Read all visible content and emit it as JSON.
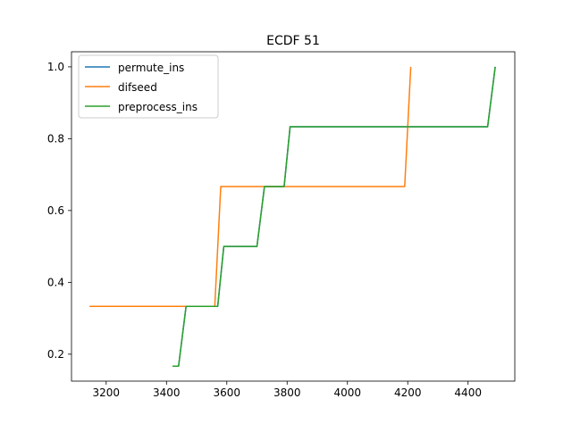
{
  "chart_data": {
    "type": "line",
    "title": "ECDF 51",
    "xlabel": "",
    "ylabel": "",
    "xlim": [
      3085,
      4555
    ],
    "ylim": [
      0.125,
      1.042
    ],
    "xticks": [
      3200,
      3400,
      3600,
      3800,
      4000,
      4200,
      4400
    ],
    "yticks": [
      0.2,
      0.4,
      0.6,
      0.8,
      1.0
    ],
    "ytick_labels": [
      "0.2",
      "0.4",
      "0.6",
      "0.8",
      "1.0"
    ],
    "grid": false,
    "legend_position": "top-left",
    "series": [
      {
        "name": "permute_ins",
        "color": "#1f77b4",
        "x": [
          3420,
          3440,
          3465,
          3570,
          3590,
          3700,
          3725,
          3790,
          3810,
          4465,
          4490
        ],
        "y": [
          0.1667,
          0.1667,
          0.3333,
          0.3333,
          0.5,
          0.5,
          0.6667,
          0.6667,
          0.8333,
          0.8333,
          1.0
        ]
      },
      {
        "name": "difseed",
        "color": "#ff7f0e",
        "x": [
          3145,
          3560,
          3580,
          4190,
          4210
        ],
        "y": [
          0.3333,
          0.3333,
          0.6667,
          0.6667,
          1.0
        ]
      },
      {
        "name": "preprocess_ins",
        "color": "#2ca02c",
        "x": [
          3420,
          3440,
          3465,
          3570,
          3590,
          3700,
          3725,
          3790,
          3810,
          4465,
          4490
        ],
        "y": [
          0.1667,
          0.1667,
          0.3333,
          0.3333,
          0.5,
          0.5,
          0.6667,
          0.6667,
          0.8333,
          0.8333,
          1.0
        ]
      }
    ]
  }
}
